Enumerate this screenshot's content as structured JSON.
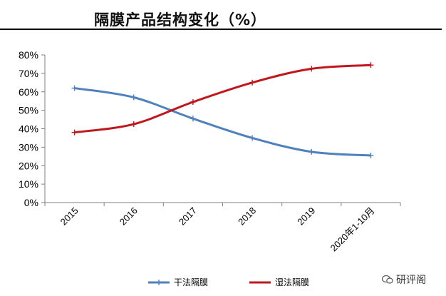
{
  "title": "隔膜产品结构变化（%）",
  "watermark": "研评阁",
  "chart_data": {
    "type": "line",
    "categories": [
      "2015",
      "2016",
      "2017",
      "2018",
      "2019",
      "2020年1-10月"
    ],
    "y_ticks": [
      "0%",
      "10%",
      "20%",
      "30%",
      "40%",
      "50%",
      "60%",
      "70%",
      "80%"
    ],
    "ylim": [
      0,
      80
    ],
    "grid": false,
    "legend_position": "bottom",
    "series": [
      {
        "name": "干法隔膜",
        "color": "#4f81bd",
        "values": [
          62,
          57,
          45.5,
          35,
          27.5,
          25.5
        ]
      },
      {
        "name": "湿法隔膜",
        "color": "#c0171d",
        "values": [
          38,
          42.5,
          54.5,
          65,
          72.5,
          74.5
        ]
      }
    ]
  }
}
